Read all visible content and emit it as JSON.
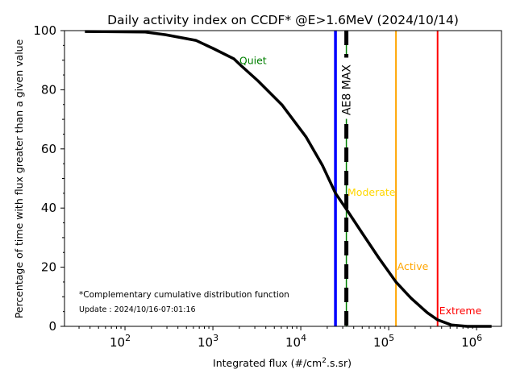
{
  "chart_data": {
    "type": "line",
    "title": "Daily activity index on CCDF* @E>1.6MeV (2024/10/14)",
    "xlabel_main": "Integrated flux (#/cm",
    "xlabel_sup": "2",
    "xlabel_tail": ".s.sr)",
    "ylabel": "Percentage of time with flux greater than a given value",
    "xscale": "log",
    "xlim": [
      20.5,
      1920000
    ],
    "ylim": [
      0,
      100
    ],
    "grid": false,
    "xticks": [
      {
        "value": 100,
        "base": "10",
        "exp": "2"
      },
      {
        "value": 1000,
        "base": "10",
        "exp": "3"
      },
      {
        "value": 10000,
        "base": "10",
        "exp": "4"
      },
      {
        "value": 100000,
        "base": "10",
        "exp": "5"
      },
      {
        "value": 1000000,
        "base": "10",
        "exp": "6"
      }
    ],
    "yticks": [
      0,
      20,
      40,
      60,
      80,
      100
    ],
    "series": [
      {
        "name": "CCDF",
        "color": "#000000",
        "x": [
          35,
          170,
          290,
          640,
          1000,
          1730,
          2120,
          3230,
          6100,
          11500,
          17600,
          24800,
          33200,
          50600,
          77000,
          121000,
          180000,
          275000,
          360000,
          514000,
          780000,
          1480000
        ],
        "y": [
          99.7,
          99.5,
          98.6,
          96.7,
          94.0,
          90.5,
          88.0,
          83.1,
          74.9,
          64.0,
          54.5,
          45.0,
          39.5,
          31.3,
          23.2,
          15.0,
          9.5,
          4.6,
          2.2,
          0.5,
          0.0,
          0.0
        ]
      }
    ],
    "vlines": [
      {
        "name": "current-value",
        "x": 24800,
        "color": "#0000ff",
        "style": "solid"
      },
      {
        "name": "ae8-max",
        "x": 33000,
        "color": "#000000",
        "style": "dashed",
        "label": "AE8 MAX"
      },
      {
        "name": "active-threshold",
        "x": 121000,
        "color": "#ffa500",
        "style": "solid"
      },
      {
        "name": "extreme-threshold",
        "x": 360000,
        "color": "#ff0000",
        "style": "solid"
      }
    ],
    "annotations": [
      {
        "name": "quiet",
        "text": "Quiet",
        "x": 2000,
        "y": 90,
        "color": "#008000"
      },
      {
        "name": "moderate",
        "text": "Moderate",
        "x": 34000,
        "y": 45.5,
        "color": "#ffd700"
      },
      {
        "name": "active",
        "text": "Active",
        "x": 125000,
        "y": 20.5,
        "color": "#ffa500"
      },
      {
        "name": "extreme",
        "text": "Extreme",
        "x": 375000,
        "y": 5.5,
        "color": "#ff0000"
      }
    ],
    "footnote": "*Complementary cumulative distribution function",
    "update": "Update : 2024/10/16-07:01:16"
  }
}
